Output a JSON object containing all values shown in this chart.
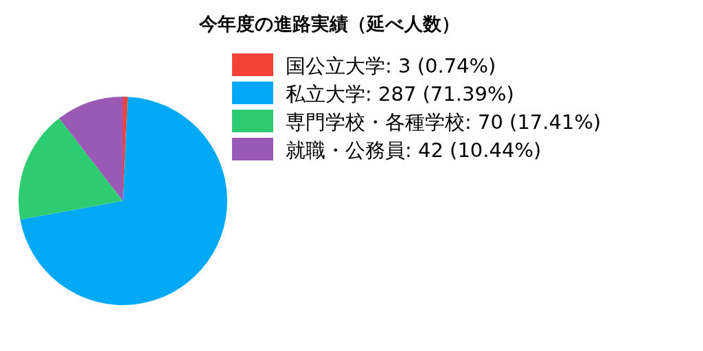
{
  "chart_data": {
    "type": "pie",
    "title": "今年度の進路実績（延べ人数）",
    "categories": [
      "国公立大学: 3 (0.74%)",
      "私立大学: 287 (71.39%)",
      "専門学校・各種学校: 70 (17.41%)",
      "就職・公務員: 42 (10.44%)"
    ],
    "values": [
      3,
      287,
      70,
      42
    ],
    "colors": [
      "#f44336",
      "#03a9f4",
      "#2ecc71",
      "#9b59b6"
    ],
    "legend": "right"
  }
}
